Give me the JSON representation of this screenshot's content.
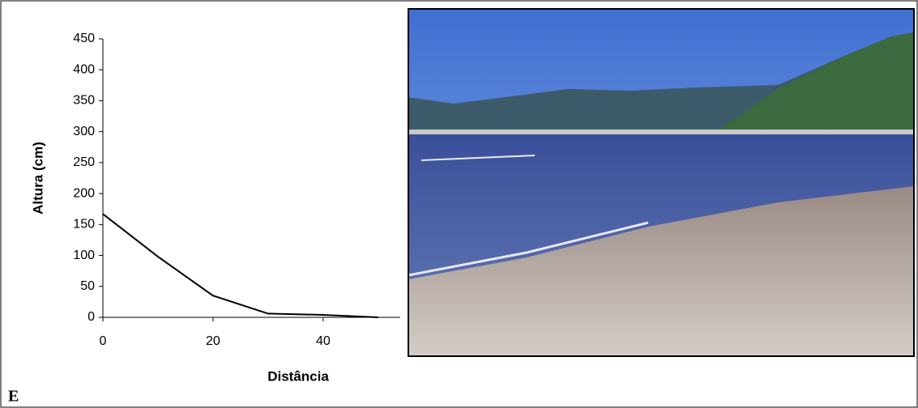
{
  "chart_data": {
    "type": "line",
    "x": [
      0,
      10,
      20,
      30,
      40,
      50
    ],
    "series": [
      {
        "name": "Altura",
        "color": "#000000",
        "values": [
          167,
          98,
          35,
          6,
          4,
          0
        ]
      }
    ],
    "xlabel": "Distância",
    "ylabel": "Altura (cm)",
    "xlim": [
      0,
      54
    ],
    "xticks": [
      0,
      20,
      40
    ],
    "ylim": [
      0,
      450
    ],
    "yticks": [
      0,
      50,
      100,
      150,
      200,
      250,
      300,
      350,
      400,
      450
    ]
  },
  "panel_label": "E"
}
